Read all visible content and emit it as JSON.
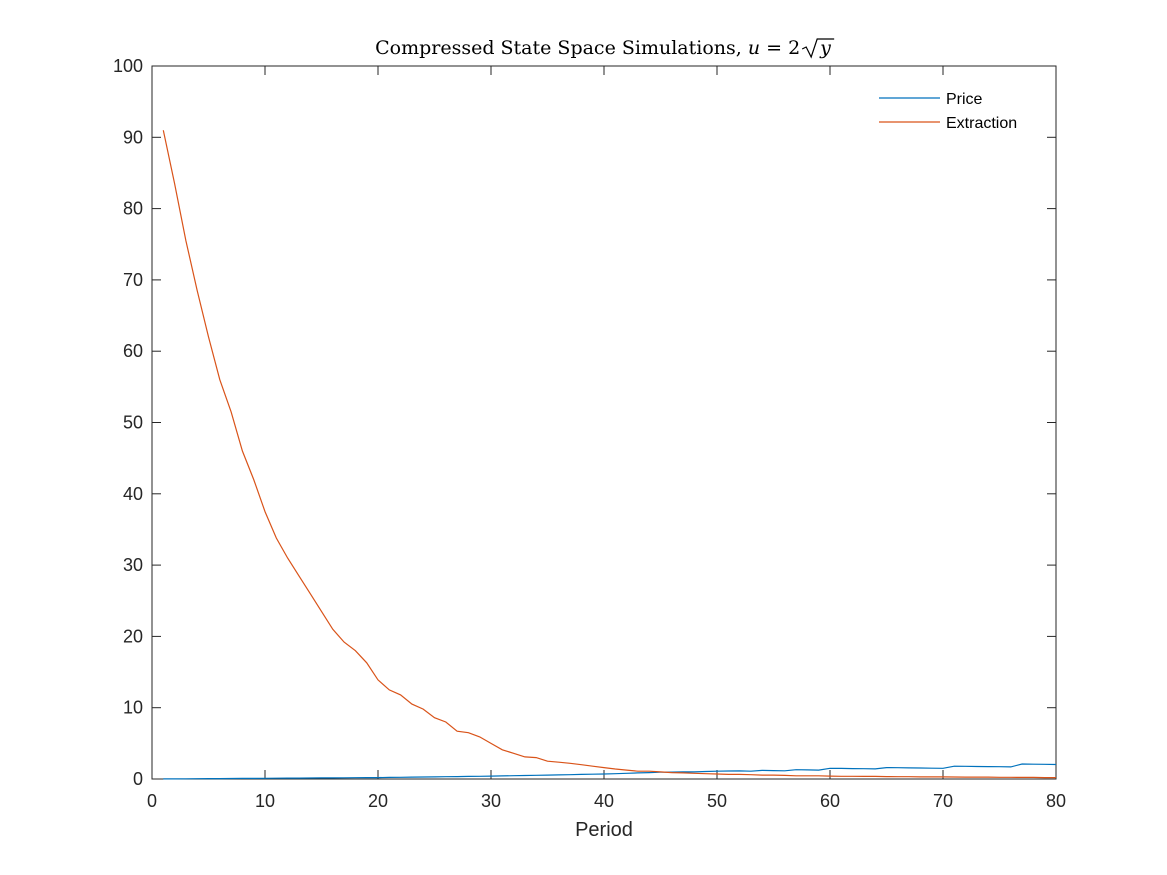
{
  "chart_data": {
    "type": "line",
    "title": "Compressed State Space Simulations, ",
    "title_math": {
      "u": "u",
      "equals": " = 2",
      "y": "y"
    },
    "xlabel": "Period",
    "ylabel": "",
    "xlim": [
      0,
      80
    ],
    "ylim": [
      0,
      100
    ],
    "xticks": [
      0,
      10,
      20,
      30,
      40,
      50,
      60,
      70,
      80
    ],
    "yticks": [
      0,
      10,
      20,
      30,
      40,
      50,
      60,
      70,
      80,
      90,
      100
    ],
    "grid": false,
    "legend_position": "top-right",
    "series": [
      {
        "name": "Price",
        "color": "#0072BD",
        "x": [
          1,
          2,
          3,
          4,
          5,
          6,
          7,
          8,
          9,
          10,
          11,
          12,
          13,
          14,
          15,
          16,
          17,
          18,
          19,
          20,
          21,
          22,
          23,
          24,
          25,
          26,
          27,
          28,
          29,
          30,
          31,
          32,
          33,
          34,
          35,
          36,
          37,
          38,
          39,
          40,
          41,
          42,
          43,
          44,
          45,
          46,
          47,
          48,
          49,
          50,
          51,
          52,
          53,
          54,
          55,
          56,
          57,
          58,
          59,
          60,
          61,
          62,
          63,
          64,
          65,
          66,
          67,
          68,
          69,
          70,
          71,
          72,
          73,
          74,
          75,
          76,
          77,
          78,
          79,
          80
        ],
        "y": [
          0.01,
          0.02,
          0.03,
          0.04,
          0.05,
          0.06,
          0.07,
          0.08,
          0.09,
          0.1,
          0.11,
          0.12,
          0.13,
          0.14,
          0.15,
          0.16,
          0.17,
          0.18,
          0.19,
          0.2,
          0.22,
          0.24,
          0.26,
          0.28,
          0.3,
          0.32,
          0.34,
          0.36,
          0.38,
          0.4,
          0.43,
          0.46,
          0.49,
          0.52,
          0.55,
          0.58,
          0.61,
          0.64,
          0.67,
          0.7,
          0.75,
          0.8,
          0.85,
          0.9,
          0.95,
          0.97,
          0.99,
          1.0,
          1.05,
          1.1,
          1.12,
          1.14,
          1.1,
          1.2,
          1.18,
          1.15,
          1.3,
          1.28,
          1.25,
          1.5,
          1.48,
          1.46,
          1.44,
          1.42,
          1.6,
          1.58,
          1.56,
          1.54,
          1.52,
          1.5,
          1.8,
          1.78,
          1.76,
          1.74,
          1.72,
          1.7,
          2.1,
          2.08,
          2.06,
          2.04
        ]
      },
      {
        "name": "Extraction",
        "color": "#D95319",
        "x": [
          1,
          2,
          3,
          4,
          5,
          6,
          7,
          8,
          9,
          10,
          11,
          12,
          13,
          14,
          15,
          16,
          17,
          18,
          19,
          20,
          21,
          22,
          23,
          24,
          25,
          26,
          27,
          28,
          29,
          30,
          31,
          32,
          33,
          34,
          35,
          36,
          37,
          38,
          39,
          40,
          41,
          42,
          43,
          44,
          45,
          46,
          47,
          48,
          49,
          50,
          51,
          52,
          53,
          54,
          55,
          56,
          57,
          58,
          59,
          60,
          61,
          62,
          63,
          64,
          65,
          66,
          67,
          68,
          69,
          70,
          71,
          72,
          73,
          74,
          75,
          76,
          77,
          78,
          79,
          80
        ],
        "y": [
          91.0,
          83.5,
          75.5,
          68.5,
          62.0,
          56.0,
          51.5,
          46.0,
          42.0,
          37.5,
          33.8,
          31.0,
          28.5,
          26.0,
          23.5,
          21.0,
          19.2,
          18.0,
          16.3,
          13.9,
          12.5,
          11.8,
          10.5,
          9.8,
          8.6,
          8.0,
          6.7,
          6.5,
          5.9,
          5.0,
          4.1,
          3.6,
          3.1,
          3.0,
          2.5,
          2.35,
          2.2,
          2.0,
          1.8,
          1.6,
          1.4,
          1.25,
          1.1,
          1.1,
          1.0,
          0.9,
          0.85,
          0.8,
          0.75,
          0.7,
          0.65,
          0.65,
          0.6,
          0.55,
          0.55,
          0.5,
          0.45,
          0.45,
          0.45,
          0.4,
          0.38,
          0.38,
          0.36,
          0.36,
          0.34,
          0.32,
          0.32,
          0.3,
          0.3,
          0.3,
          0.28,
          0.26,
          0.26,
          0.26,
          0.24,
          0.24,
          0.22,
          0.22,
          0.2,
          0.2
        ]
      }
    ]
  }
}
